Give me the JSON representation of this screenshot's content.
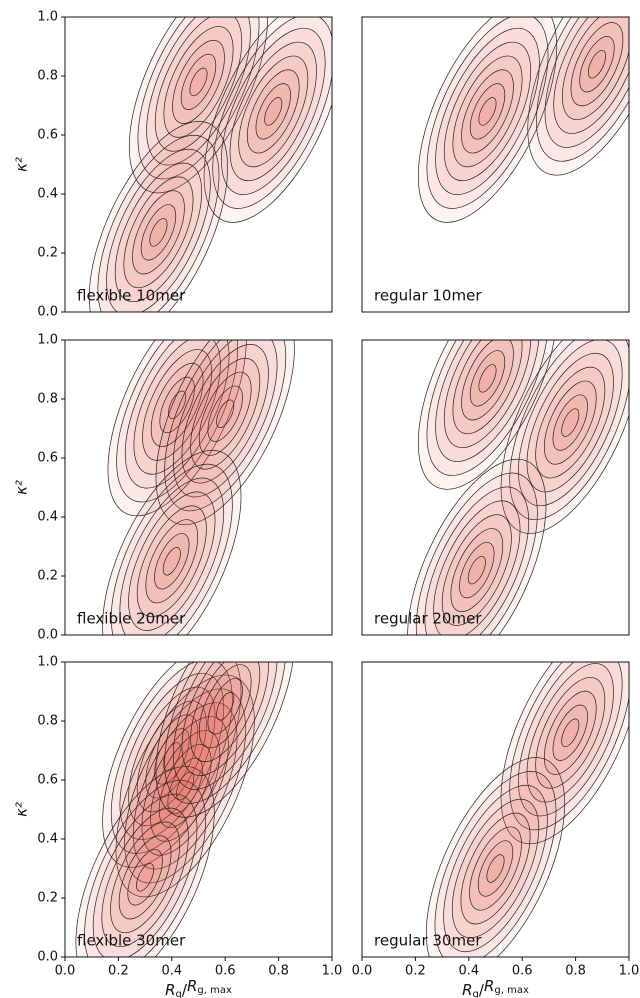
{
  "chart_data": [
    {
      "type": "contour",
      "label": "flexible 10mer",
      "ylabel": "κ²",
      "xlim": [
        0,
        1
      ],
      "ylim": [
        0,
        1
      ],
      "yticks": [
        {
          "value": 0,
          "label": "0.0"
        },
        {
          "value": 0.2,
          "label": "0.2"
        },
        {
          "value": 0.4,
          "label": "0.4"
        },
        {
          "value": 0.6,
          "label": "0.6"
        },
        {
          "value": 0.8,
          "label": "0.8"
        },
        {
          "value": 1,
          "label": "1.0"
        }
      ],
      "peaks": {
        "x": [
          0.5,
          0.78,
          0.35
        ],
        "y": [
          0.78,
          0.68,
          0.27
        ]
      }
    },
    {
      "type": "contour",
      "label": "regular 10mer",
      "xlim": [
        0,
        1
      ],
      "ylim": [
        0,
        1
      ],
      "peaks": {
        "x": [
          0.88,
          0.47
        ],
        "y": [
          0.84,
          0.68
        ]
      }
    },
    {
      "type": "contour",
      "label": "flexible 20mer",
      "ylabel": "κ²",
      "xlim": [
        0,
        1
      ],
      "ylim": [
        0,
        1
      ],
      "yticks": [
        {
          "value": 0,
          "label": "0.0"
        },
        {
          "value": 0.2,
          "label": "0.2"
        },
        {
          "value": 0.4,
          "label": "0.4"
        },
        {
          "value": 0.6,
          "label": "0.6"
        },
        {
          "value": 0.8,
          "label": "0.8"
        },
        {
          "value": 1,
          "label": "1.0"
        }
      ],
      "peaks": {
        "x": [
          0.42,
          0.6,
          0.4
        ],
        "y": [
          0.78,
          0.75,
          0.25
        ]
      }
    },
    {
      "type": "contour",
      "label": "regular 20mer",
      "xlim": [
        0,
        1
      ],
      "ylim": [
        0,
        1
      ],
      "peaks": {
        "x": [
          0.78,
          0.47,
          0.43
        ],
        "y": [
          0.72,
          0.87,
          0.22
        ]
      }
    },
    {
      "type": "contour",
      "label": "flexible 30mer",
      "ylabel": "κ²",
      "xlabel": [
        "R",
        "g",
        "/",
        "R",
        "g, max"
      ],
      "xlim": [
        0,
        1
      ],
      "ylim": [
        0,
        1
      ],
      "xticks": [
        {
          "value": 0,
          "label": "0.0"
        },
        {
          "value": 0.2,
          "label": "0.2"
        },
        {
          "value": 0.4,
          "label": "0.4"
        },
        {
          "value": 0.6,
          "label": "0.6"
        },
        {
          "value": 0.8,
          "label": "0.8"
        },
        {
          "value": 1,
          "label": "1.0"
        }
      ],
      "yticks": [
        {
          "value": 0,
          "label": "0.0"
        },
        {
          "value": 0.2,
          "label": "0.2"
        },
        {
          "value": 0.4,
          "label": "0.4"
        },
        {
          "value": 0.6,
          "label": "0.6"
        },
        {
          "value": 0.8,
          "label": "0.8"
        },
        {
          "value": 1,
          "label": "1.0"
        }
      ],
      "peaks": {
        "x": [
          0.4,
          0.45,
          0.3,
          0.6
        ],
        "y": [
          0.68,
          0.58,
          0.27,
          0.85
        ]
      }
    },
    {
      "type": "contour",
      "label": "regular 30mer",
      "xlabel": [
        "R",
        "g",
        "/",
        "R",
        "g, max"
      ],
      "xlim": [
        0,
        1
      ],
      "ylim": [
        0,
        1
      ],
      "xticks": [
        {
          "value": 0,
          "label": "0.0"
        },
        {
          "value": 0.2,
          "label": "0.2"
        },
        {
          "value": 0.4,
          "label": "0.4"
        },
        {
          "value": 0.6,
          "label": "0.6"
        },
        {
          "value": 0.8,
          "label": "0.8"
        },
        {
          "value": 1,
          "label": "1.0"
        }
      ],
      "peaks": {
        "x": [
          0.78,
          0.5
        ],
        "y": [
          0.76,
          0.3
        ]
      }
    }
  ]
}
